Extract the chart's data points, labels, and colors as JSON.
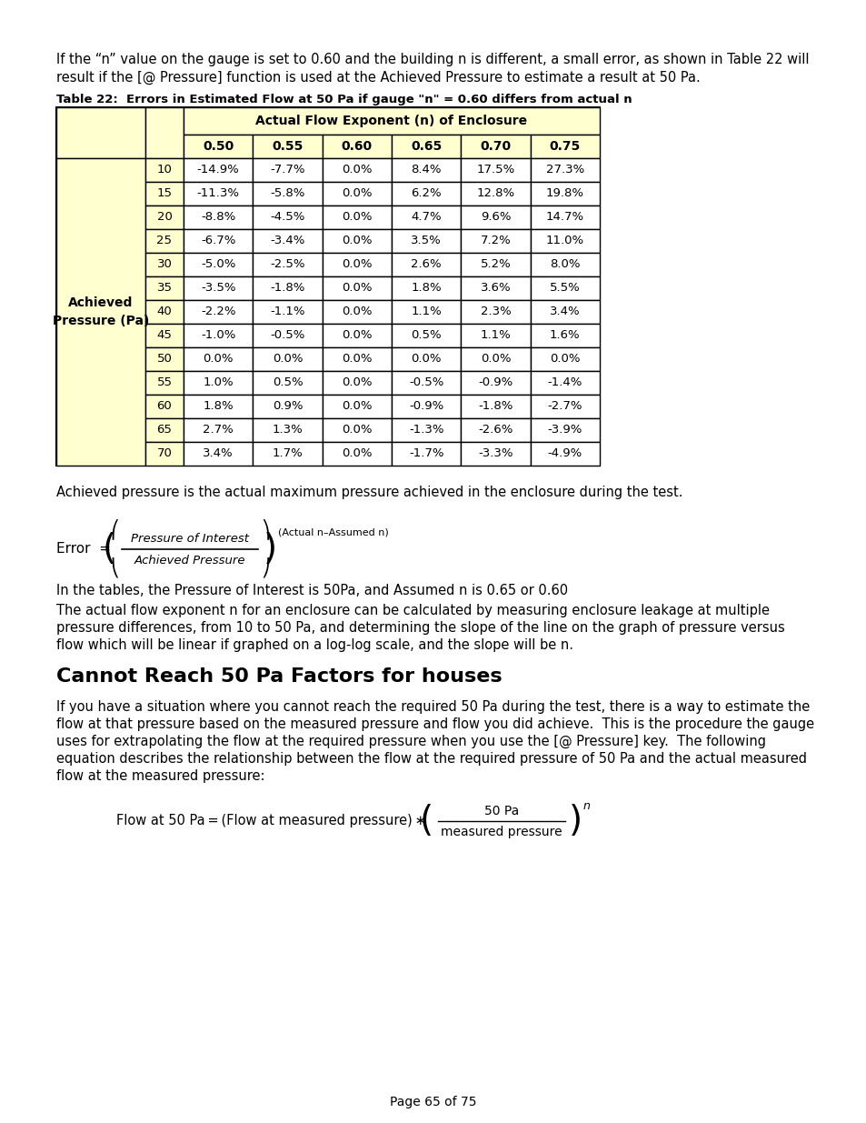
{
  "page_bg": "#ffffff",
  "table_col_headers": [
    "0.50",
    "0.55",
    "0.60",
    "0.65",
    "0.70",
    "0.75"
  ],
  "table_rows": [
    [
      "10",
      "-14.9%",
      "-7.7%",
      "0.0%",
      "8.4%",
      "17.5%",
      "27.3%"
    ],
    [
      "15",
      "-11.3%",
      "-5.8%",
      "0.0%",
      "6.2%",
      "12.8%",
      "19.8%"
    ],
    [
      "20",
      "-8.8%",
      "-4.5%",
      "0.0%",
      "4.7%",
      "9.6%",
      "14.7%"
    ],
    [
      "25",
      "-6.7%",
      "-3.4%",
      "0.0%",
      "3.5%",
      "7.2%",
      "11.0%"
    ],
    [
      "30",
      "-5.0%",
      "-2.5%",
      "0.0%",
      "2.6%",
      "5.2%",
      "8.0%"
    ],
    [
      "35",
      "-3.5%",
      "-1.8%",
      "0.0%",
      "1.8%",
      "3.6%",
      "5.5%"
    ],
    [
      "40",
      "-2.2%",
      "-1.1%",
      "0.0%",
      "1.1%",
      "2.3%",
      "3.4%"
    ],
    [
      "45",
      "-1.0%",
      "-0.5%",
      "0.0%",
      "0.5%",
      "1.1%",
      "1.6%"
    ],
    [
      "50",
      "0.0%",
      "0.0%",
      "0.0%",
      "0.0%",
      "0.0%",
      "0.0%"
    ],
    [
      "55",
      "1.0%",
      "0.5%",
      "0.0%",
      "-0.5%",
      "-0.9%",
      "-1.4%"
    ],
    [
      "60",
      "1.8%",
      "0.9%",
      "0.0%",
      "-0.9%",
      "-1.8%",
      "-2.7%"
    ],
    [
      "65",
      "2.7%",
      "1.3%",
      "0.0%",
      "-1.3%",
      "-2.6%",
      "-3.9%"
    ],
    [
      "70",
      "3.4%",
      "1.7%",
      "0.0%",
      "-1.7%",
      "-3.3%",
      "-4.9%"
    ]
  ],
  "table_bg": "#ffffd0",
  "table_border": "#000000",
  "data_bg": "#ffffff"
}
